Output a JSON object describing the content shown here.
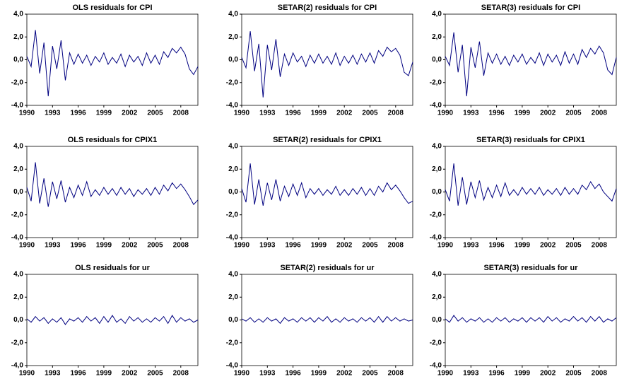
{
  "chart_data": [
    {
      "type": "line",
      "title": "OLS residuals for CPI",
      "color": "#000080",
      "x": [
        1990,
        1990.5,
        1991,
        1991.5,
        1992,
        1992.5,
        1993,
        1993.5,
        1994,
        1994.5,
        1995,
        1995.5,
        1996,
        1996.5,
        1997,
        1997.5,
        1998,
        1998.5,
        1999,
        1999.5,
        2000,
        2000.5,
        2001,
        2001.5,
        2002,
        2002.5,
        2003,
        2003.5,
        2004,
        2004.5,
        2005,
        2005.5,
        2006,
        2006.5,
        2007,
        2007.5,
        2008,
        2008.5,
        2009,
        2009.5,
        2010
      ],
      "values": [
        0.3,
        -0.6,
        2.6,
        -1.2,
        1.5,
        -3.2,
        1.2,
        -0.8,
        1.7,
        -1.8,
        0.6,
        -0.4,
        0.5,
        -0.3,
        0.4,
        -0.5,
        0.3,
        -0.2,
        0.6,
        -0.4,
        0.2,
        -0.3,
        0.5,
        -0.6,
        0.4,
        -0.2,
        0.3,
        -0.5,
        0.6,
        -0.3,
        0.4,
        -0.4,
        0.7,
        0.2,
        1.0,
        0.6,
        1.1,
        0.5,
        -0.8,
        -1.3,
        -0.6
      ],
      "xlim": [
        1990,
        2010
      ],
      "xticks": [
        1990,
        1993,
        1996,
        1999,
        2002,
        2005,
        2008
      ],
      "ylim": [
        -4,
        4
      ],
      "yticks": [
        {
          "value": 4,
          "label": "4,0"
        },
        {
          "value": 2,
          "label": "2,0"
        },
        {
          "value": 0,
          "label": "0,0"
        },
        {
          "value": -2,
          "label": "-2,0"
        },
        {
          "value": -4,
          "label": "-4,0"
        }
      ]
    },
    {
      "type": "line",
      "title": "SETAR(2) residuals for CPI",
      "color": "#000080",
      "x": [
        1990,
        1990.5,
        1991,
        1991.5,
        1992,
        1992.5,
        1993,
        1993.5,
        1994,
        1994.5,
        1995,
        1995.5,
        1996,
        1996.5,
        1997,
        1997.5,
        1998,
        1998.5,
        1999,
        1999.5,
        2000,
        2000.5,
        2001,
        2001.5,
        2002,
        2002.5,
        2003,
        2003.5,
        2004,
        2004.5,
        2005,
        2005.5,
        2006,
        2006.5,
        2007,
        2007.5,
        2008,
        2008.5,
        2009,
        2009.5,
        2010
      ],
      "values": [
        0.2,
        -0.7,
        2.5,
        -1.0,
        1.4,
        -3.3,
        1.3,
        -0.9,
        1.8,
        -1.5,
        0.5,
        -0.5,
        0.6,
        -0.2,
        0.3,
        -0.6,
        0.4,
        -0.3,
        0.5,
        -0.3,
        0.3,
        -0.4,
        0.6,
        -0.5,
        0.3,
        -0.3,
        0.4,
        -0.4,
        0.5,
        -0.2,
        0.6,
        -0.3,
        0.8,
        0.3,
        1.1,
        0.7,
        1.0,
        0.4,
        -1.1,
        -1.4,
        -0.2
      ],
      "xlim": [
        1990,
        2010
      ],
      "xticks": [
        1990,
        1993,
        1996,
        1999,
        2002,
        2005,
        2008
      ],
      "ylim": [
        -4,
        4
      ],
      "yticks": [
        {
          "value": 4,
          "label": "4,0"
        },
        {
          "value": 2,
          "label": "2,0"
        },
        {
          "value": 0,
          "label": "0,0"
        },
        {
          "value": -2,
          "label": "-2,0"
        },
        {
          "value": -4,
          "label": "-4,0"
        }
      ]
    },
    {
      "type": "line",
      "title": "SETAR(3) residuals for CPI",
      "color": "#000080",
      "x": [
        1990,
        1990.5,
        1991,
        1991.5,
        1992,
        1992.5,
        1993,
        1993.5,
        1994,
        1994.5,
        1995,
        1995.5,
        1996,
        1996.5,
        1997,
        1997.5,
        1998,
        1998.5,
        1999,
        1999.5,
        2000,
        2000.5,
        2001,
        2001.5,
        2002,
        2002.5,
        2003,
        2003.5,
        2004,
        2004.5,
        2005,
        2005.5,
        2006,
        2006.5,
        2007,
        2007.5,
        2008,
        2008.5,
        2009,
        2009.5,
        2010
      ],
      "values": [
        0.3,
        -0.5,
        2.4,
        -1.1,
        1.3,
        -3.2,
        1.1,
        -0.7,
        1.6,
        -1.4,
        0.6,
        -0.3,
        0.5,
        -0.4,
        0.3,
        -0.5,
        0.4,
        -0.2,
        0.5,
        -0.4,
        0.2,
        -0.3,
        0.6,
        -0.5,
        0.5,
        -0.2,
        0.4,
        -0.5,
        0.7,
        -0.3,
        0.5,
        -0.4,
        0.9,
        0.2,
        1.0,
        0.5,
        1.2,
        0.6,
        -0.9,
        -1.3,
        0.2
      ],
      "xlim": [
        1990,
        2010
      ],
      "xticks": [
        1990,
        1993,
        1996,
        1999,
        2002,
        2005,
        2008
      ],
      "ylim": [
        -4,
        4
      ],
      "yticks": [
        {
          "value": 4,
          "label": "4,0"
        },
        {
          "value": 2,
          "label": "2,0"
        },
        {
          "value": 0,
          "label": "0,0"
        },
        {
          "value": -2,
          "label": "-2,0"
        },
        {
          "value": -4,
          "label": "-4,0"
        }
      ]
    },
    {
      "type": "line",
      "title": "OLS residuals for CPIX1",
      "color": "#000080",
      "x": [
        1990,
        1990.5,
        1991,
        1991.5,
        1992,
        1992.5,
        1993,
        1993.5,
        1994,
        1994.5,
        1995,
        1995.5,
        1996,
        1996.5,
        1997,
        1997.5,
        1998,
        1998.5,
        1999,
        1999.5,
        2000,
        2000.5,
        2001,
        2001.5,
        2002,
        2002.5,
        2003,
        2003.5,
        2004,
        2004.5,
        2005,
        2005.5,
        2006,
        2006.5,
        2007,
        2007.5,
        2008,
        2008.5,
        2009,
        2009.5,
        2010
      ],
      "values": [
        0.4,
        -0.8,
        2.6,
        -1.0,
        1.2,
        -1.3,
        0.9,
        -0.6,
        1.0,
        -0.9,
        0.4,
        -0.5,
        0.6,
        -0.3,
        0.9,
        -0.4,
        0.2,
        -0.3,
        0.4,
        -0.2,
        0.3,
        -0.3,
        0.4,
        -0.2,
        0.3,
        -0.4,
        0.2,
        -0.2,
        0.3,
        -0.3,
        0.4,
        -0.2,
        0.6,
        0.1,
        0.8,
        0.3,
        0.7,
        0.2,
        -0.4,
        -1.1,
        -0.7
      ],
      "xlim": [
        1990,
        2010
      ],
      "xticks": [
        1990,
        1993,
        1996,
        1999,
        2002,
        2005,
        2008
      ],
      "ylim": [
        -4,
        4
      ],
      "yticks": [
        {
          "value": 4,
          "label": "4,0"
        },
        {
          "value": 2,
          "label": "2,0"
        },
        {
          "value": 0,
          "label": "0,0"
        },
        {
          "value": -2,
          "label": "-2,0"
        },
        {
          "value": -4,
          "label": "-4,0"
        }
      ]
    },
    {
      "type": "line",
      "title": "SETAR(2) residuals for CPIX1",
      "color": "#000080",
      "x": [
        1990,
        1990.5,
        1991,
        1991.5,
        1992,
        1992.5,
        1993,
        1993.5,
        1994,
        1994.5,
        1995,
        1995.5,
        1996,
        1996.5,
        1997,
        1997.5,
        1998,
        1998.5,
        1999,
        1999.5,
        2000,
        2000.5,
        2001,
        2001.5,
        2002,
        2002.5,
        2003,
        2003.5,
        2004,
        2004.5,
        2005,
        2005.5,
        2006,
        2006.5,
        2007,
        2007.5,
        2008,
        2008.5,
        2009,
        2009.5,
        2010
      ],
      "values": [
        0.3,
        -0.9,
        2.5,
        -1.1,
        1.1,
        -1.2,
        0.8,
        -0.7,
        1.1,
        -0.8,
        0.5,
        -0.4,
        0.7,
        -0.3,
        0.8,
        -0.5,
        0.3,
        -0.2,
        0.3,
        -0.3,
        0.2,
        -0.2,
        0.5,
        -0.3,
        0.2,
        -0.3,
        0.3,
        -0.2,
        0.4,
        -0.3,
        0.3,
        -0.3,
        0.5,
        0.0,
        0.8,
        0.2,
        0.6,
        0.1,
        -0.5,
        -1.0,
        -0.8
      ],
      "xlim": [
        1990,
        2010
      ],
      "xticks": [
        1990,
        1993,
        1996,
        1999,
        2002,
        2005,
        2008
      ],
      "ylim": [
        -4,
        4
      ],
      "yticks": [
        {
          "value": 4,
          "label": "4,0"
        },
        {
          "value": 2,
          "label": "2,0"
        },
        {
          "value": 0,
          "label": "0,0"
        },
        {
          "value": -2,
          "label": "-2,0"
        },
        {
          "value": -4,
          "label": "-4,0"
        }
      ]
    },
    {
      "type": "line",
      "title": "SETAR(3) residuals for CPIX1",
      "color": "#000080",
      "x": [
        1990,
        1990.5,
        1991,
        1991.5,
        1992,
        1992.5,
        1993,
        1993.5,
        1994,
        1994.5,
        1995,
        1995.5,
        1996,
        1996.5,
        1997,
        1997.5,
        1998,
        1998.5,
        1999,
        1999.5,
        2000,
        2000.5,
        2001,
        2001.5,
        2002,
        2002.5,
        2003,
        2003.5,
        2004,
        2004.5,
        2005,
        2005.5,
        2006,
        2006.5,
        2007,
        2007.5,
        2008,
        2008.5,
        2009,
        2009.5,
        2010
      ],
      "values": [
        0.2,
        -0.8,
        2.5,
        -1.2,
        1.3,
        -1.1,
        0.9,
        -0.5,
        1.0,
        -0.7,
        0.4,
        -0.5,
        0.6,
        -0.4,
        0.8,
        -0.3,
        0.2,
        -0.3,
        0.4,
        -0.2,
        0.3,
        -0.2,
        0.4,
        -0.3,
        0.2,
        -0.2,
        0.3,
        -0.3,
        0.4,
        -0.2,
        0.3,
        -0.2,
        0.6,
        0.2,
        0.9,
        0.3,
        0.7,
        0.0,
        -0.4,
        -0.8,
        0.3
      ],
      "xlim": [
        1990,
        2010
      ],
      "xticks": [
        1990,
        1993,
        1996,
        1999,
        2002,
        2005,
        2008
      ],
      "ylim": [
        -4,
        4
      ],
      "yticks": [
        {
          "value": 4,
          "label": "4,0"
        },
        {
          "value": 2,
          "label": "2,0"
        },
        {
          "value": 0,
          "label": "0,0"
        },
        {
          "value": -2,
          "label": "-2,0"
        },
        {
          "value": -4,
          "label": "-4,0"
        }
      ]
    },
    {
      "type": "line",
      "title": "OLS residuals for ur",
      "color": "#000080",
      "x": [
        1990,
        1990.5,
        1991,
        1991.5,
        1992,
        1992.5,
        1993,
        1993.5,
        1994,
        1994.5,
        1995,
        1995.5,
        1996,
        1996.5,
        1997,
        1997.5,
        1998,
        1998.5,
        1999,
        1999.5,
        2000,
        2000.5,
        2001,
        2001.5,
        2002,
        2002.5,
        2003,
        2003.5,
        2004,
        2004.5,
        2005,
        2005.5,
        2006,
        2006.5,
        2007,
        2007.5,
        2008,
        2008.5,
        2009,
        2009.5,
        2010
      ],
      "values": [
        0.1,
        -0.2,
        0.3,
        -0.1,
        0.2,
        -0.3,
        0.1,
        -0.2,
        0.2,
        -0.4,
        0.1,
        -0.1,
        0.2,
        -0.2,
        0.3,
        -0.1,
        0.2,
        -0.3,
        0.3,
        -0.2,
        0.4,
        -0.2,
        0.1,
        -0.3,
        0.3,
        -0.1,
        0.2,
        -0.2,
        0.1,
        -0.2,
        0.2,
        -0.1,
        0.3,
        -0.3,
        0.4,
        -0.2,
        0.2,
        -0.1,
        0.1,
        -0.2,
        0.0
      ],
      "xlim": [
        1990,
        2010
      ],
      "xticks": [
        1990,
        1993,
        1996,
        1999,
        2002,
        2005,
        2008
      ],
      "ylim": [
        -4,
        4
      ],
      "yticks": [
        {
          "value": 4,
          "label": "4,0"
        },
        {
          "value": 2,
          "label": "2,0"
        },
        {
          "value": 0,
          "label": "0,0"
        },
        {
          "value": -2,
          "label": "-2,0"
        },
        {
          "value": -4,
          "label": "-4,0"
        }
      ]
    },
    {
      "type": "line",
      "title": "SETAR(2) residuals for ur",
      "color": "#000080",
      "x": [
        1990,
        1990.5,
        1991,
        1991.5,
        1992,
        1992.5,
        1993,
        1993.5,
        1994,
        1994.5,
        1995,
        1995.5,
        1996,
        1996.5,
        1997,
        1997.5,
        1998,
        1998.5,
        1999,
        1999.5,
        2000,
        2000.5,
        2001,
        2001.5,
        2002,
        2002.5,
        2003,
        2003.5,
        2004,
        2004.5,
        2005,
        2005.5,
        2006,
        2006.5,
        2007,
        2007.5,
        2008,
        2008.5,
        2009,
        2009.5,
        2010
      ],
      "values": [
        0.1,
        -0.1,
        0.2,
        -0.2,
        0.1,
        -0.2,
        0.2,
        -0.1,
        0.1,
        -0.3,
        0.2,
        -0.1,
        0.1,
        -0.2,
        0.2,
        -0.1,
        0.2,
        -0.2,
        0.2,
        -0.1,
        0.3,
        -0.2,
        0.1,
        -0.2,
        0.2,
        -0.1,
        0.1,
        -0.2,
        0.2,
        -0.1,
        0.2,
        -0.2,
        0.3,
        -0.2,
        0.3,
        -0.1,
        0.2,
        -0.1,
        0.1,
        -0.1,
        0.0
      ],
      "xlim": [
        1990,
        2010
      ],
      "xticks": [
        1990,
        1993,
        1996,
        1999,
        2002,
        2005,
        2008
      ],
      "ylim": [
        -4,
        4
      ],
      "yticks": [
        {
          "value": 4,
          "label": "4,0"
        },
        {
          "value": 2,
          "label": "2,0"
        },
        {
          "value": 0,
          "label": "0,0"
        },
        {
          "value": -2,
          "label": "-2,0"
        },
        {
          "value": -4,
          "label": "-4,0"
        }
      ]
    },
    {
      "type": "line",
      "title": "SETAR(3) residuals for ur",
      "color": "#000080",
      "x": [
        1990,
        1990.5,
        1991,
        1991.5,
        1992,
        1992.5,
        1993,
        1993.5,
        1994,
        1994.5,
        1995,
        1995.5,
        1996,
        1996.5,
        1997,
        1997.5,
        1998,
        1998.5,
        1999,
        1999.5,
        2000,
        2000.5,
        2001,
        2001.5,
        2002,
        2002.5,
        2003,
        2003.5,
        2004,
        2004.5,
        2005,
        2005.5,
        2006,
        2006.5,
        2007,
        2007.5,
        2008,
        2008.5,
        2009,
        2009.5,
        2010
      ],
      "values": [
        0.1,
        -0.2,
        0.4,
        -0.1,
        0.2,
        -0.2,
        0.1,
        -0.1,
        0.2,
        -0.2,
        0.1,
        -0.2,
        0.2,
        -0.1,
        0.2,
        -0.2,
        0.1,
        -0.1,
        0.2,
        -0.2,
        0.2,
        -0.1,
        0.2,
        -0.2,
        0.3,
        -0.1,
        0.2,
        -0.2,
        0.1,
        -0.1,
        0.3,
        -0.1,
        0.2,
        -0.2,
        0.3,
        -0.1,
        0.3,
        -0.2,
        0.1,
        -0.1,
        0.2
      ],
      "xlim": [
        1990,
        2010
      ],
      "xticks": [
        1990,
        1993,
        1996,
        1999,
        2002,
        2005,
        2008
      ],
      "ylim": [
        -4,
        4
      ],
      "yticks": [
        {
          "value": 4,
          "label": "4,0"
        },
        {
          "value": 2,
          "label": "2,0"
        },
        {
          "value": 0,
          "label": "0,0"
        },
        {
          "value": -2,
          "label": "-2,0"
        },
        {
          "value": -4,
          "label": "-4,0"
        }
      ]
    }
  ]
}
